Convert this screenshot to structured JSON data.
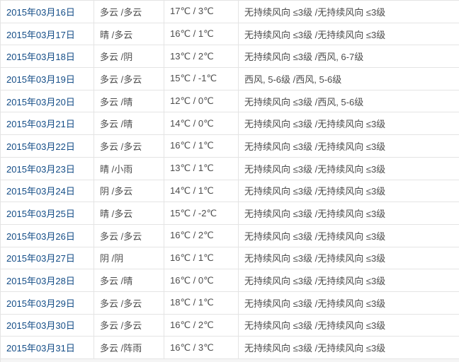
{
  "colors": {
    "link_blue": "#144d87",
    "body_text": "#4c4c4c",
    "border_gray": "#e4e4e4"
  },
  "table": {
    "columns": [
      "date",
      "weather",
      "temperature",
      "wind"
    ],
    "rows": [
      {
        "date": "2015年03月16日",
        "weather": "多云 /多云",
        "temperature": "17℃ / 3℃",
        "wind": "无持续风向 ≤3级 /无持续风向 ≤3级"
      },
      {
        "date": "2015年03月17日",
        "weather": "晴 /多云",
        "temperature": "16℃ / 1℃",
        "wind": "无持续风向 ≤3级 /无持续风向 ≤3级"
      },
      {
        "date": "2015年03月18日",
        "weather": "多云 /阴",
        "temperature": "13℃ / 2℃",
        "wind": "无持续风向 ≤3级 /西风, 6-7级"
      },
      {
        "date": "2015年03月19日",
        "weather": "多云 /多云",
        "temperature": "15℃ / -1℃",
        "wind": "西风, 5-6级 /西风, 5-6级"
      },
      {
        "date": "2015年03月20日",
        "weather": "多云 /晴",
        "temperature": "12℃ / 0℃",
        "wind": "无持续风向 ≤3级 /西风, 5-6级"
      },
      {
        "date": "2015年03月21日",
        "weather": "多云 /晴",
        "temperature": "14℃ / 0℃",
        "wind": "无持续风向 ≤3级 /无持续风向 ≤3级"
      },
      {
        "date": "2015年03月22日",
        "weather": "多云 /多云",
        "temperature": "16℃ / 1℃",
        "wind": "无持续风向 ≤3级 /无持续风向 ≤3级"
      },
      {
        "date": "2015年03月23日",
        "weather": "晴 /小雨",
        "temperature": "13℃ / 1℃",
        "wind": "无持续风向 ≤3级 /无持续风向 ≤3级"
      },
      {
        "date": "2015年03月24日",
        "weather": "阴 /多云",
        "temperature": "14℃ / 1℃",
        "wind": "无持续风向 ≤3级 /无持续风向 ≤3级"
      },
      {
        "date": "2015年03月25日",
        "weather": "晴 /多云",
        "temperature": "15℃ / -2℃",
        "wind": "无持续风向 ≤3级 /无持续风向 ≤3级"
      },
      {
        "date": "2015年03月26日",
        "weather": "多云 /多云",
        "temperature": "16℃ / 2℃",
        "wind": "无持续风向 ≤3级 /无持续风向 ≤3级"
      },
      {
        "date": "2015年03月27日",
        "weather": "阴 /阴",
        "temperature": "16℃ / 1℃",
        "wind": "无持续风向 ≤3级 /无持续风向 ≤3级"
      },
      {
        "date": "2015年03月28日",
        "weather": "多云 /晴",
        "temperature": "16℃ / 0℃",
        "wind": "无持续风向 ≤3级 /无持续风向 ≤3级"
      },
      {
        "date": "2015年03月29日",
        "weather": "多云 /多云",
        "temperature": "18℃ / 1℃",
        "wind": "无持续风向 ≤3级 /无持续风向 ≤3级"
      },
      {
        "date": "2015年03月30日",
        "weather": "多云 /多云",
        "temperature": "16℃ / 2℃",
        "wind": "无持续风向 ≤3级 /无持续风向 ≤3级"
      },
      {
        "date": "2015年03月31日",
        "weather": "多云 /阵雨",
        "temperature": "16℃ / 3℃",
        "wind": "无持续风向 ≤3级 /无持续风向 ≤3级"
      }
    ]
  }
}
